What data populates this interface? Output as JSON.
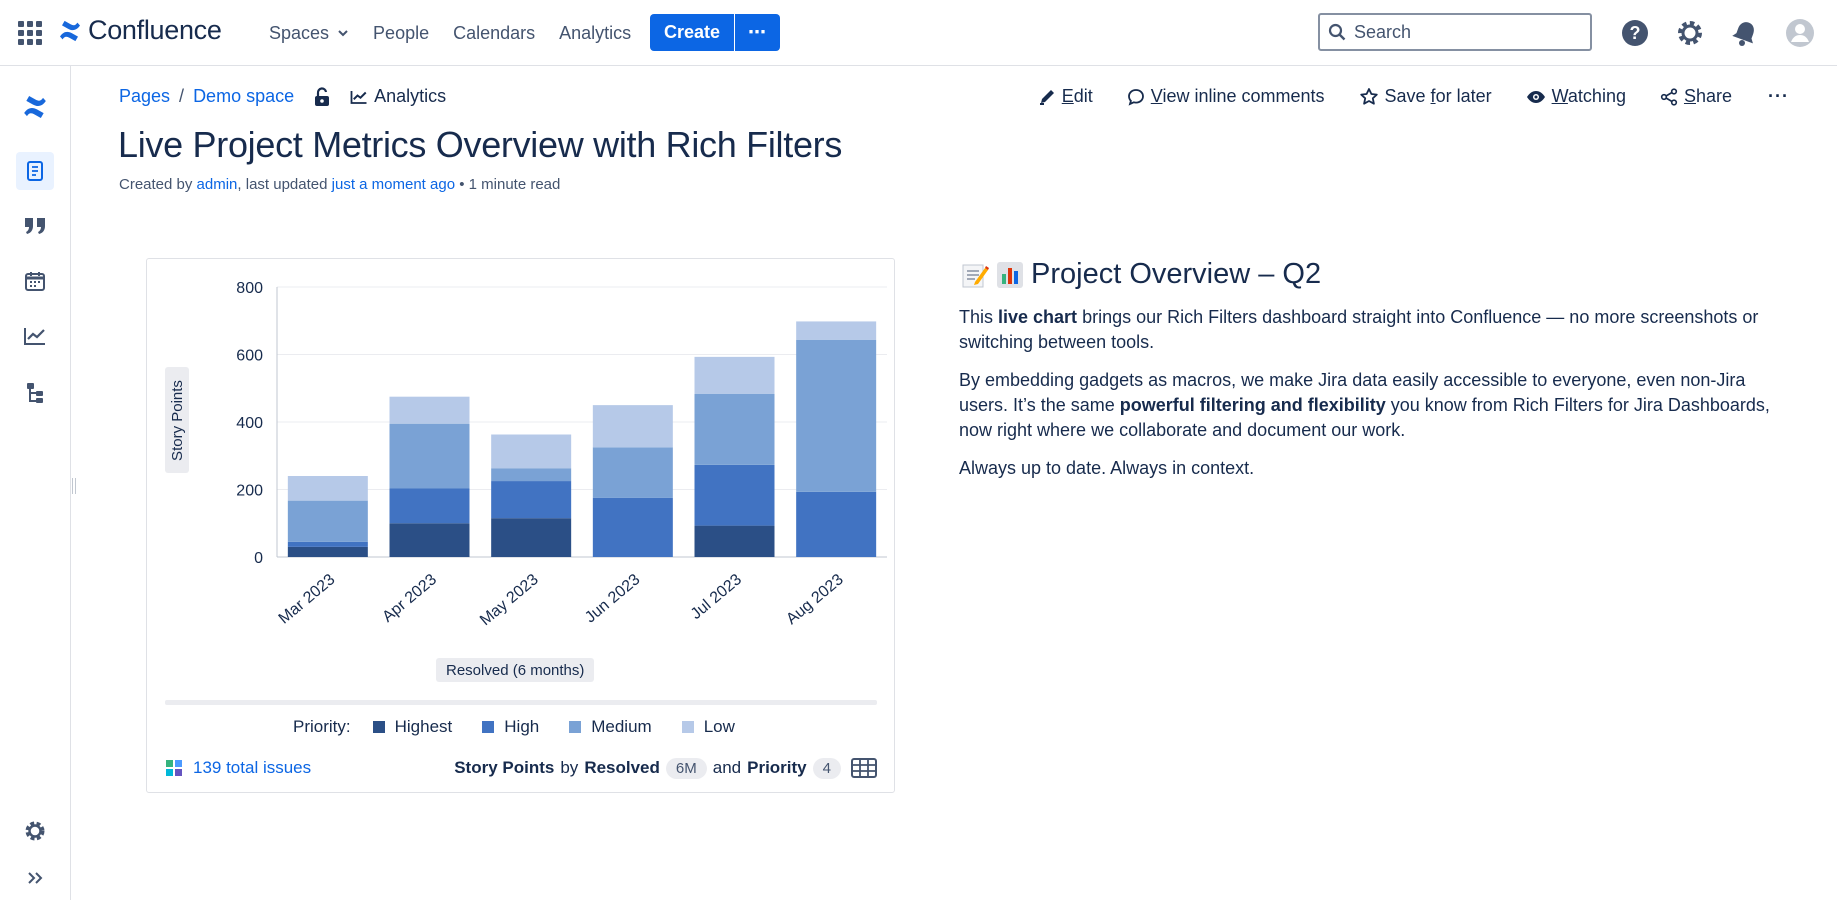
{
  "topnav": {
    "app_name": "Confluence",
    "items": [
      "Spaces",
      "People",
      "Calendars",
      "Analytics"
    ],
    "create_label": "Create",
    "create_more": "⋯",
    "search_placeholder": "Search"
  },
  "breadcrumb": {
    "pages": "Pages",
    "separator": "/",
    "space": "Demo space",
    "analytics": "Analytics"
  },
  "page_actions": {
    "edit_first": "E",
    "edit_rest": "dit",
    "comments_first": "V",
    "comments_rest": "iew inline comments",
    "save_a": "Save ",
    "save_b": "f",
    "save_c": "or later",
    "watching_first": "W",
    "watching_rest": "atching",
    "share_first": "S",
    "share_rest": "hare",
    "more": "···"
  },
  "page": {
    "title": "Live Project Metrics Overview with Rich Filters",
    "byline_created": "Created by ",
    "byline_author": "admin",
    "byline_updated": ", last updated ",
    "byline_time": "just a moment ago",
    "byline_read": " • 1 minute read"
  },
  "chart_data": {
    "type": "bar",
    "stacked": true,
    "categories": [
      "Mar 2023",
      "Apr 2023",
      "May 2023",
      "Jun 2023",
      "Jul 2023",
      "Aug 2023"
    ],
    "series": [
      {
        "name": "Highest",
        "color": "#2b4f86",
        "values": [
          30,
          100,
          115,
          0,
          93,
          0
        ]
      },
      {
        "name": "High",
        "color": "#4173c2",
        "values": [
          15,
          103,
          110,
          175,
          180,
          193
        ]
      },
      {
        "name": "Medium",
        "color": "#7aa2d5",
        "values": [
          122,
          192,
          38,
          150,
          210,
          450
        ]
      },
      {
        "name": "Low",
        "color": "#b6c9e8",
        "values": [
          73,
          80,
          100,
          125,
          110,
          55
        ]
      }
    ],
    "ylabel": "Story Points",
    "xlabel": "Resolved (6 months)",
    "ylim": [
      0,
      800
    ],
    "yticks": [
      0,
      200,
      400,
      600,
      800
    ],
    "grid": true,
    "legend_title": "Priority:",
    "legend_position": "bottom"
  },
  "card_footer": {
    "total_issues": "139 total issues",
    "metric": "Story Points",
    "by": "by",
    "dimension": "Resolved",
    "dimension_count": "6M",
    "and": "and",
    "group": "Priority",
    "group_count": "4"
  },
  "overview": {
    "heading": "Project Overview – Q2",
    "p1_a": "This ",
    "p1_b": "live chart",
    "p1_c": " brings our Rich Filters dashboard straight into Confluence — no more screenshots or switching between tools.",
    "p2_a": "By embedding gadgets as macros, we make Jira data easily accessible to everyone, even non-Jira users. It’s the same ",
    "p2_b": "powerful filtering and flexibility",
    "p2_c": " you know from Rich Filters for Jira Dashboards, now right where we collaborate and document our work.",
    "p3": "Always up to date. Always in context."
  },
  "icons": {
    "app_switcher": "grid-icon",
    "help": "help-icon",
    "settings": "gear-icon",
    "notifications": "bell-icon",
    "profile": "avatar-icon"
  },
  "colors": {
    "accent": "#0c66e4",
    "text": "#172b4d"
  }
}
